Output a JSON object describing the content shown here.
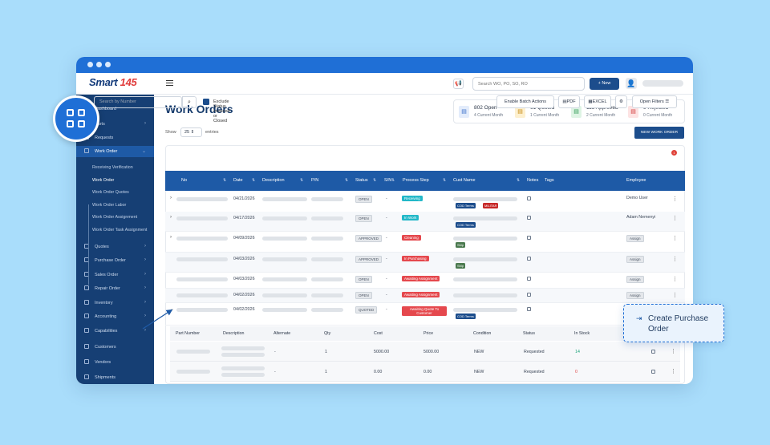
{
  "app": {
    "logo_main": "Smart",
    "logo_accent": "145",
    "search_placeholder": "Search WO, PO, SO, RO",
    "new_button": "+ New",
    "megaphone": "📢",
    "user_icon": "👤"
  },
  "sidebar": {
    "items": [
      {
        "label": "Dashboard",
        "chev": ""
      },
      {
        "label": "Parts",
        "chev": "›"
      },
      {
        "label": "Requests",
        "chev": ""
      },
      {
        "label": "Work Order",
        "chev": "⌄"
      },
      {
        "label": "Quotes",
        "chev": "›"
      },
      {
        "label": "Purchase Order",
        "chev": "›"
      },
      {
        "label": "Sales Order",
        "chev": "›"
      },
      {
        "label": "Repair Order",
        "chev": "›"
      },
      {
        "label": "Inventory",
        "chev": "›"
      },
      {
        "label": "Accounting",
        "chev": "›"
      },
      {
        "label": "Capabilities",
        "chev": "›"
      },
      {
        "label": "Customers",
        "chev": ""
      },
      {
        "label": "Vendors",
        "chev": ""
      },
      {
        "label": "Shipments",
        "chev": ""
      }
    ],
    "sub_items": [
      "Receiving Verification",
      "Work Order",
      "Work Order Quotes",
      "Work Order Labor",
      "Work Order Assignment",
      "Work Order Task Assignment"
    ]
  },
  "page": {
    "title": "Work Orders",
    "show_label": "Show",
    "show_value": "25",
    "entries_label": "entries",
    "new_work_order": "NEW WORK ORDER"
  },
  "stats": [
    {
      "value": "802 Open",
      "sub": "4 Current Month",
      "bg": "#e3ecfb",
      "fg": "#3b6fc9",
      "icon": "▤"
    },
    {
      "value": "61 Quoted",
      "sub": "1 Current Month",
      "bg": "#fdf0cf",
      "fg": "#c58a12",
      "icon": "▤"
    },
    {
      "value": "115 Approved",
      "sub": "2 Current Month",
      "bg": "#def4e4",
      "fg": "#2f9a55",
      "icon": "▤"
    },
    {
      "value": "9 Rejected",
      "sub": "0 Current Month",
      "bg": "#fde3e3",
      "fg": "#d23b3b",
      "icon": "▤"
    }
  ],
  "toolbar": {
    "search_placeholder": "Search by Number",
    "search_icon": "⌕",
    "exclude_label": "Exclude Status Invoiced or Closed",
    "batch": "Enable Batch Actions",
    "pdf": "PDF",
    "excel": "EXCEL",
    "gear": "⚙",
    "open_filters": "Open Filters ☰",
    "filter_badge": "1"
  },
  "table": {
    "headers": [
      "No",
      "Date",
      "Description",
      "P/N",
      "Status",
      "S/N",
      "Process Step",
      "Cust Name",
      "Notes",
      "Tags",
      "Employee"
    ],
    "rows": [
      {
        "date": "04/21/2026",
        "status": "OPEN",
        "sn": "-",
        "step": "Receiving",
        "step_color": "#22b8c8",
        "tags": [
          {
            "t": "COD Terms",
            "c": "#1c4d8c"
          },
          {
            "t": "MILITAR",
            "c": "#c62828"
          }
        ],
        "employee": "Demo User",
        "expand": "›"
      },
      {
        "date": "04/17/2026",
        "status": "OPEN",
        "sn": "-",
        "step": "In Work",
        "step_color": "#22b8c8",
        "tags": [
          {
            "t": "COD Terms",
            "c": "#1c4d8c"
          }
        ],
        "employee": "Adam Nemenyi",
        "expand": "›"
      },
      {
        "date": "04/09/2026",
        "status": "APPROVED",
        "sn": "-",
        "step": "Cleaning",
        "step_color": "#e5484d",
        "tags": [
          {
            "t": "Ship",
            "c": "#4b7a4f"
          }
        ],
        "employee": "Assign",
        "expand": "›"
      },
      {
        "date": "04/03/2026",
        "status": "APPROVED",
        "sn": "-",
        "step": "In Purchasing",
        "step_color": "#e5484d",
        "tags": [
          {
            "t": "Ship",
            "c": "#4b7a4f"
          }
        ],
        "employee": "Assign",
        "expand": ""
      },
      {
        "date": "04/03/2026",
        "status": "OPEN",
        "sn": "-",
        "step": "Awaiting Assignment",
        "step_color": "#e5484d",
        "tags": [],
        "employee": "Assign",
        "expand": ""
      },
      {
        "date": "04/02/2026",
        "status": "OPEN",
        "sn": "-",
        "step": "Awaiting Assignment",
        "step_color": "#e5484d",
        "tags": [],
        "employee": "Assign",
        "expand": ""
      },
      {
        "date": "04/02/2026",
        "status": "QUOTED",
        "sn": "-",
        "step": "Awaiting Quote To Customer",
        "step_color": "#e5484d",
        "tags": [
          {
            "t": "COD Terms",
            "c": "#1c4d8c"
          }
        ],
        "employee": "",
        "expand": "⌄"
      }
    ],
    "kebab": "⋮"
  },
  "subtable": {
    "headers": [
      "Part Number",
      "Description",
      "Alternate",
      "Qty",
      "Cost",
      "Price",
      "Condition",
      "Status",
      "In Stock"
    ],
    "rows": [
      {
        "alternate": "-",
        "qty": "1",
        "cost": "5000.00",
        "price": "5000.00",
        "condition": "NEW",
        "status": "Requested",
        "stock": "14",
        "stock_color": "#1aa37a"
      },
      {
        "alternate": "-",
        "qty": "1",
        "cost": "0.00",
        "price": "0.00",
        "condition": "NEW",
        "status": "Requested",
        "stock": "0",
        "stock_color": "#e04848"
      }
    ]
  },
  "popup": {
    "icon": "⇥",
    "label": "Create Purchase Order"
  }
}
